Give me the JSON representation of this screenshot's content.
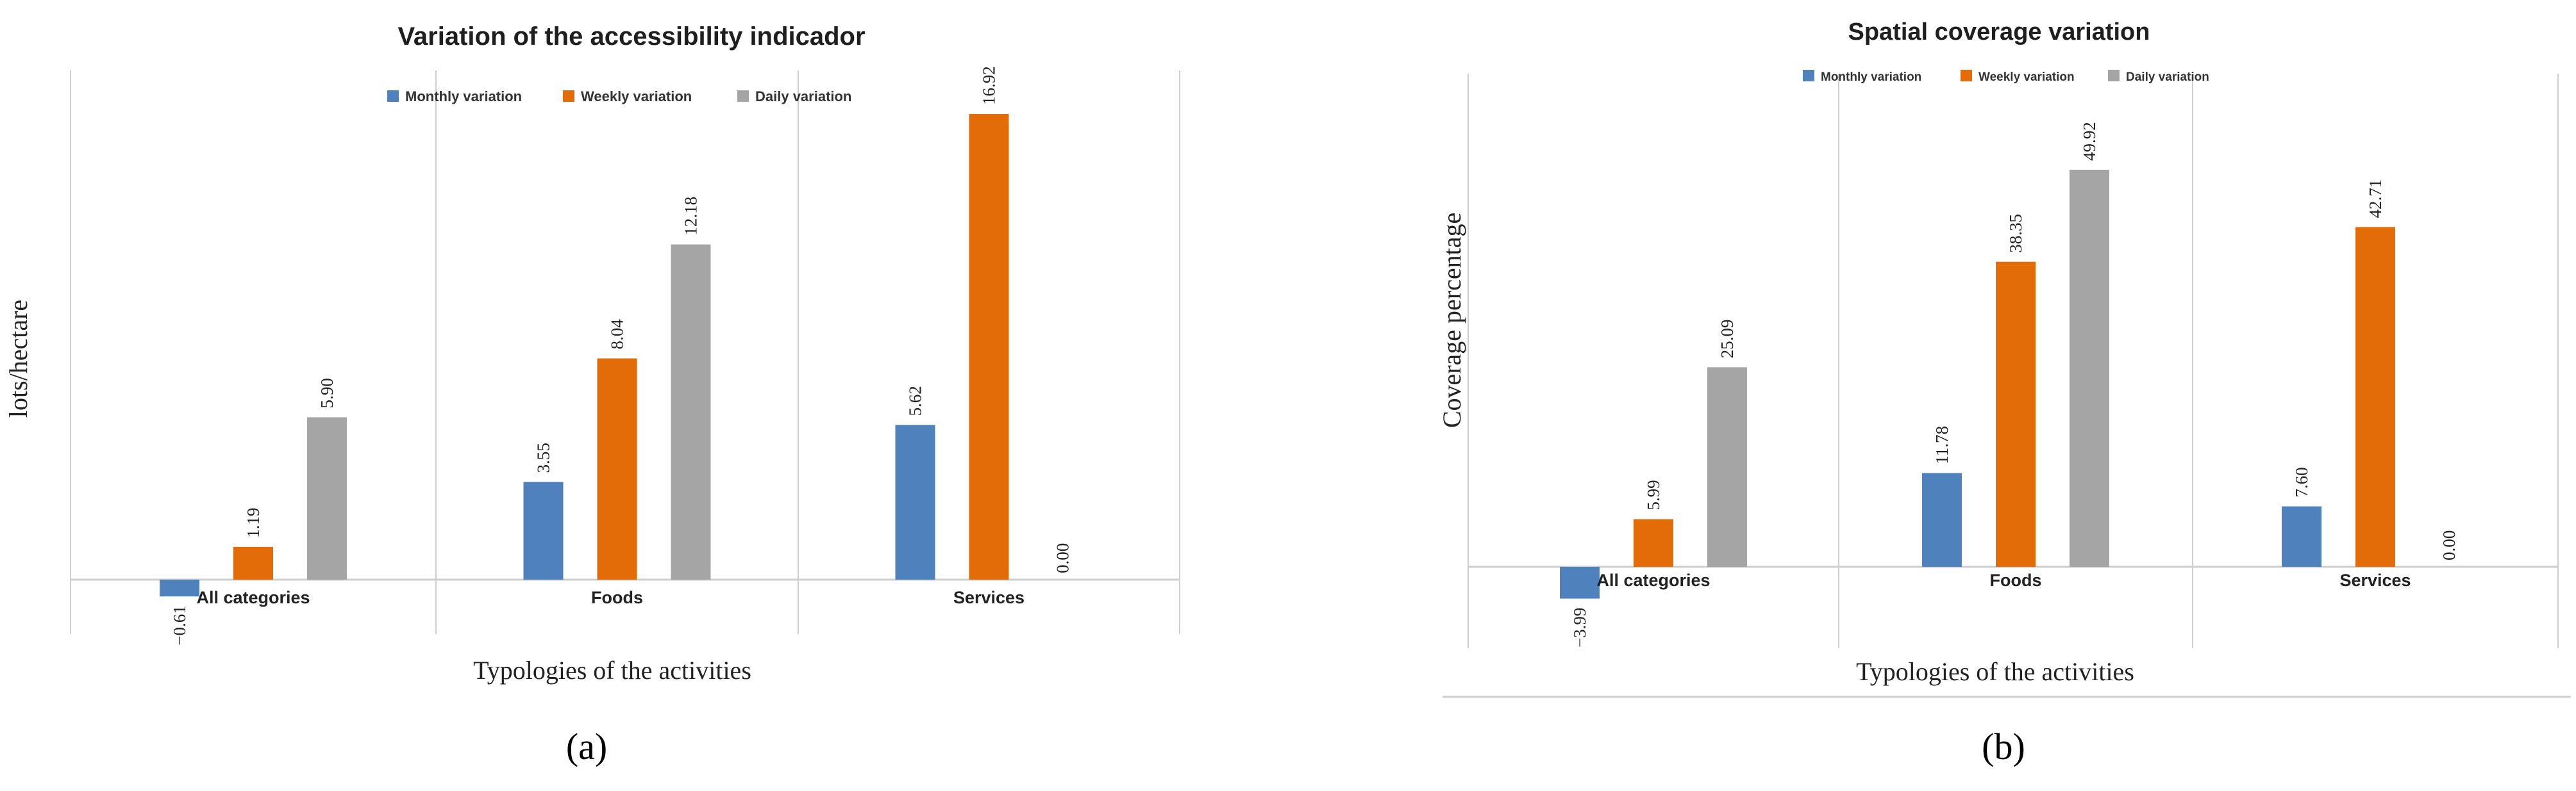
{
  "chart_data": [
    {
      "panel_label": "(a)",
      "type": "bar",
      "title": "Variation of the accessibility indicador",
      "xlabel": "Typologies of the activities",
      "ylabel": "lots/hectare",
      "categories": [
        "All categories",
        "Foods",
        "Services"
      ],
      "series": [
        {
          "name": "Monthly variation",
          "values": [
            -0.61,
            3.55,
            5.62
          ]
        },
        {
          "name": "Weekly variation",
          "values": [
            1.19,
            8.04,
            16.92
          ]
        },
        {
          "name": "Daily variation",
          "values": [
            5.9,
            12.18,
            0.0
          ]
        }
      ],
      "value_labels": [
        [
          "−0.61",
          "3.55",
          "5.62"
        ],
        [
          "1.19",
          "8.04",
          "16.92"
        ],
        [
          "5.90",
          "12.18",
          "0.00"
        ]
      ],
      "ylim": [
        -1,
        18
      ],
      "legend": "top",
      "grid": "vertical category separators"
    },
    {
      "panel_label": "(b)",
      "type": "bar",
      "title": "Spatial coverage variation",
      "xlabel": "Typologies of the activities",
      "ylabel": "Coverage percentage",
      "categories": [
        "All categories",
        "Foods",
        "Services"
      ],
      "series": [
        {
          "name": "Monthly variation",
          "values": [
            -3.99,
            11.78,
            7.6
          ]
        },
        {
          "name": "Weekly variation",
          "values": [
            5.99,
            38.35,
            42.71
          ]
        },
        {
          "name": "Daily variation",
          "values": [
            25.09,
            49.92,
            0.0
          ]
        }
      ],
      "value_labels": [
        [
          "−3.99",
          "11.78",
          "7.60"
        ],
        [
          "5.99",
          "38.35",
          "42.71"
        ],
        [
          "25.09",
          "49.92",
          "0.00"
        ]
      ],
      "ylim": [
        -6,
        55
      ],
      "legend": "top",
      "grid": "vertical category separators"
    }
  ],
  "colors": {
    "monthly": "#4f81bd",
    "weekly": "#e36c09",
    "daily": "#a5a5a5",
    "negative_label": "#d9262c",
    "axis": "#cfcfcf"
  }
}
